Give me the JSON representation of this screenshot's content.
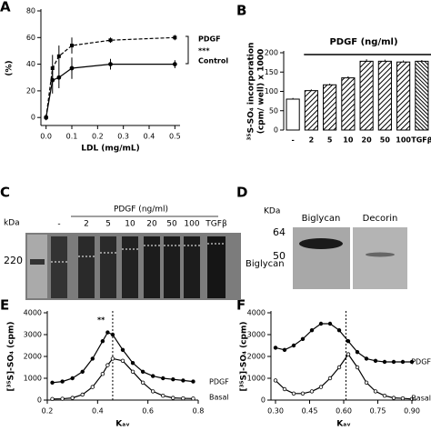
{
  "figure": {
    "panel_labels": [
      "A",
      "B",
      "C",
      "D",
      "E",
      "F"
    ],
    "blot_c": {
      "kda_label": "kDa",
      "marker": "220",
      "treatment": "PDGF (ng/ml)",
      "lanes": [
        "-",
        "2",
        "5",
        "10",
        "20",
        "50",
        "100",
        "TGFβ"
      ],
      "band": "Biglycan"
    },
    "blot_d": {
      "kda_label": "KDa",
      "markers": [
        "64",
        "50"
      ],
      "lanes": [
        "Biglycan",
        "Decorin"
      ]
    }
  },
  "chart_data": [
    {
      "type": "line",
      "ylabel": "(%)",
      "xlabel": "LDL (mg/mL)",
      "x": [
        0,
        0.025,
        0.05,
        0.1,
        0.25,
        0.5
      ],
      "xlim": [
        -0.02,
        0.52
      ],
      "xticks": [
        {
          "value": 0,
          "label": "0.0"
        },
        0.1,
        0.2,
        0.3,
        0.4,
        0.5
      ],
      "ylim": [
        -6,
        80
      ],
      "yticks": [
        0,
        20,
        40,
        60,
        80
      ],
      "series": [
        {
          "name": "PDGF",
          "color": "#000000",
          "dashed": true,
          "marker": "square",
          "values": [
            0,
            37,
            46,
            54,
            58,
            60
          ],
          "errors": [
            2,
            10,
            8,
            6,
            2,
            2
          ]
        },
        {
          "name": "Control",
          "color": "#000000",
          "dashed": false,
          "marker": "circle",
          "values": [
            0,
            28,
            30,
            37,
            40,
            40
          ],
          "errors": [
            2,
            10,
            8,
            8,
            4,
            3
          ]
        }
      ],
      "annotations": [
        "***"
      ]
    },
    {
      "type": "bar",
      "ylabel": [
        "³⁵S-SO₄ incorporation",
        "(cpm/ well) x 1000"
      ],
      "categories": [
        "-",
        "2",
        "5",
        "10",
        "20",
        "50",
        "100",
        "TGFβ"
      ],
      "values": [
        80,
        102,
        117,
        135,
        178,
        178,
        176,
        178
      ],
      "errors": [
        3,
        3,
        3,
        4,
        5,
        4,
        4,
        3
      ],
      "color": "#000000",
      "ylim": [
        0,
        200
      ],
      "yticks": [
        0,
        50,
        100,
        150,
        200
      ],
      "annotations": [
        "PDGF (ng/ml)"
      ]
    },
    {
      "type": "line",
      "ylabel": "[³⁵S]-SO₄ (cpm)",
      "xlabel": "Kₐᵥ",
      "x": [
        0.22,
        0.26,
        0.3,
        0.34,
        0.38,
        0.42,
        0.44,
        0.46,
        0.5,
        0.54,
        0.58,
        0.62,
        0.66,
        0.7,
        0.74,
        0.78
      ],
      "xlim": [
        0.2,
        0.8
      ],
      "xticks": [
        0.2,
        0.4,
        0.6,
        0.8
      ],
      "ylim": [
        0,
        4000
      ],
      "yticks": [
        0,
        1000,
        2000,
        3000,
        4000
      ],
      "series": [
        {
          "name": "PDGF",
          "color": "#000000",
          "dashed": false,
          "marker": "filled",
          "values": [
            800,
            850,
            1000,
            1300,
            1900,
            2700,
            3100,
            3000,
            2300,
            1700,
            1300,
            1100,
            1000,
            950,
            900,
            850
          ]
        },
        {
          "name": "Basal",
          "color": "#000000",
          "dashed": false,
          "marker": "open",
          "values": [
            50,
            60,
            100,
            250,
            600,
            1200,
            1600,
            1900,
            1800,
            1300,
            800,
            400,
            200,
            100,
            80,
            70
          ]
        }
      ],
      "vline": 0.46,
      "annotations": [
        "**"
      ]
    },
    {
      "type": "line",
      "ylabel": "[³⁵S]-SO₄ (cpm)",
      "xlabel": "Kₐᵥ",
      "x": [
        0.3,
        0.34,
        0.38,
        0.42,
        0.46,
        0.5,
        0.54,
        0.58,
        0.62,
        0.66,
        0.7,
        0.74,
        0.78,
        0.82,
        0.86,
        0.9
      ],
      "xlim": [
        0.28,
        0.92
      ],
      "xticks": [
        {
          "value": 0.3,
          "label": "0.30"
        },
        0.45,
        {
          "value": 0.6,
          "label": "0.60"
        },
        0.75,
        {
          "value": 0.9,
          "label": "0.90"
        }
      ],
      "ylim": [
        0,
        4000
      ],
      "yticks": [
        0,
        1000,
        2000,
        3000,
        4000
      ],
      "series": [
        {
          "name": "PDGF",
          "color": "#000000",
          "dashed": false,
          "marker": "filled",
          "values": [
            2400,
            2300,
            2500,
            2800,
            3200,
            3500,
            3500,
            3200,
            2700,
            2200,
            1900,
            1800,
            1750,
            1750,
            1750,
            1750
          ]
        },
        {
          "name": "Basal",
          "color": "#000000",
          "dashed": false,
          "marker": "open",
          "values": [
            900,
            500,
            300,
            300,
            400,
            600,
            1000,
            1500,
            2100,
            1500,
            800,
            400,
            200,
            100,
            80,
            50
          ]
        }
      ],
      "vline": 0.61,
      "annotations": []
    }
  ]
}
